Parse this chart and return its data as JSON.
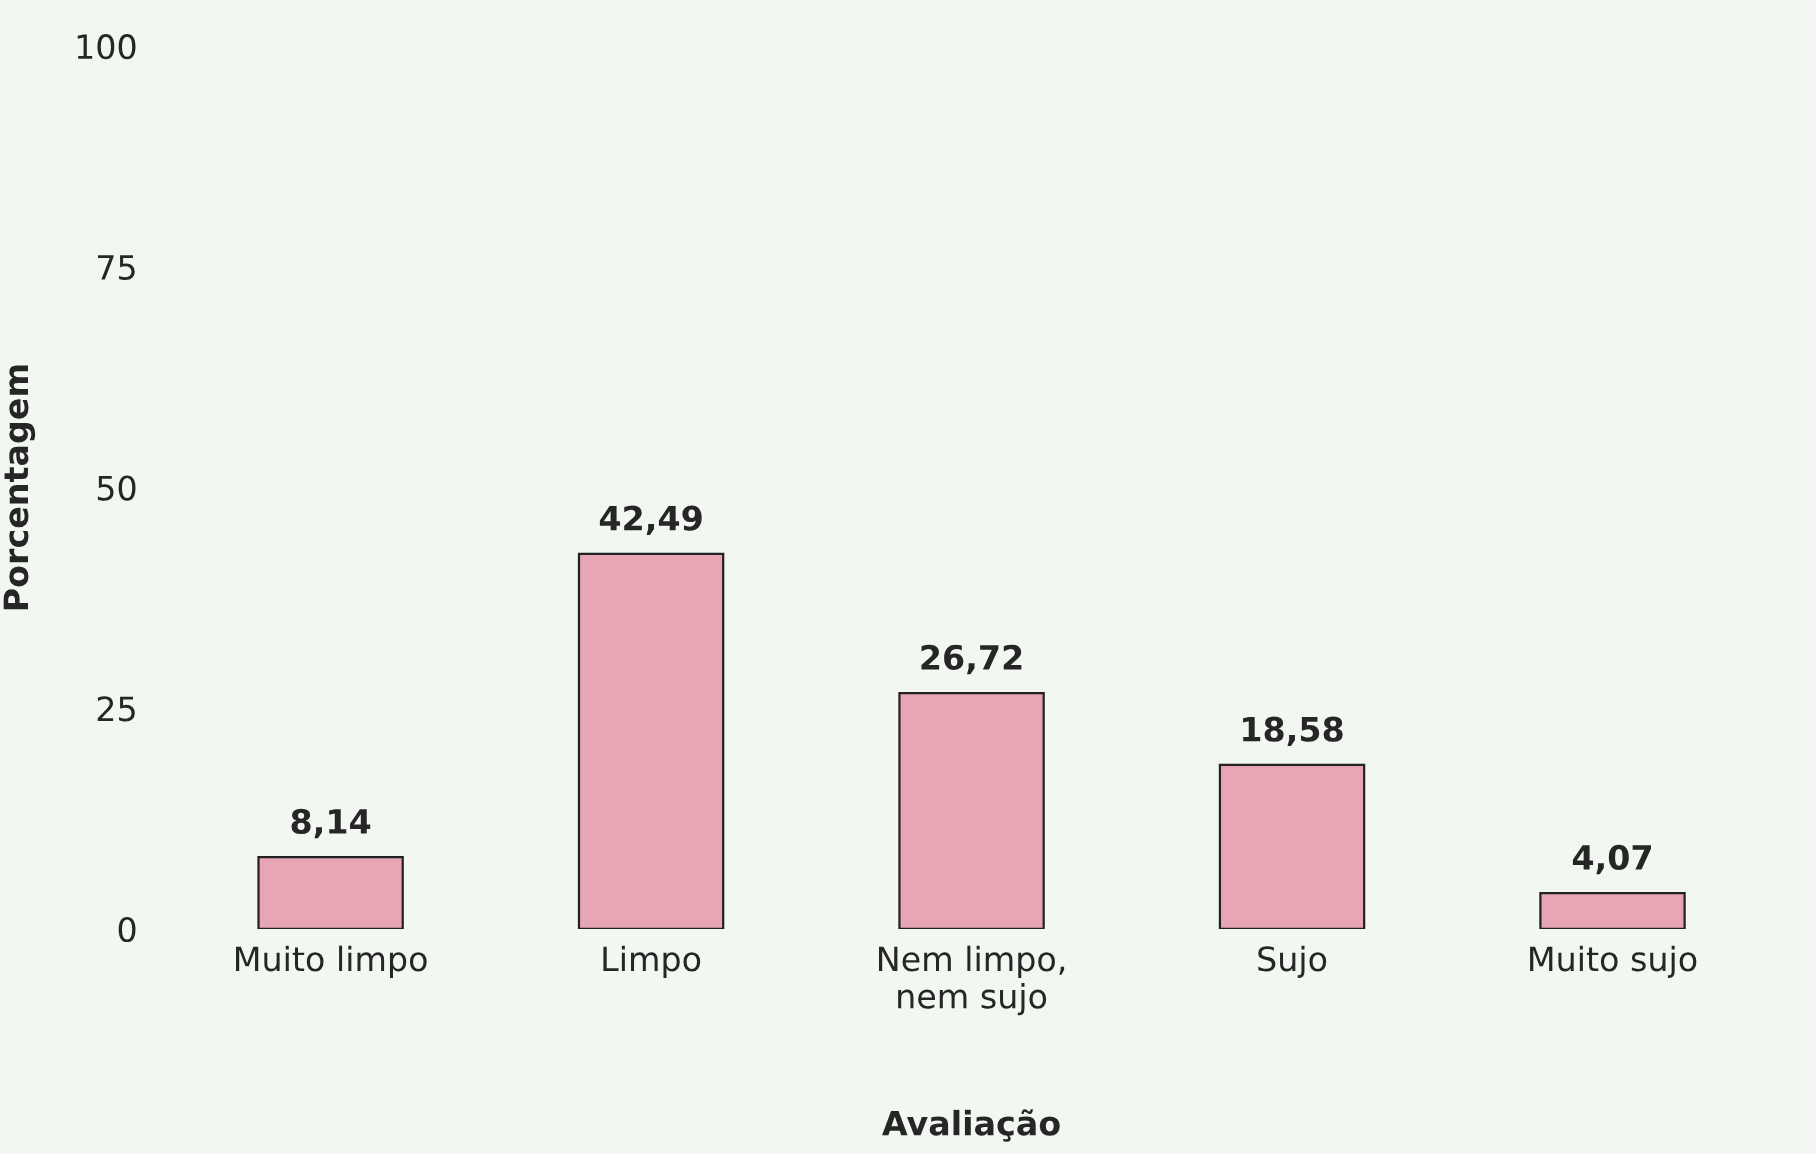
{
  "chart_data": {
    "type": "bar",
    "xlabel": "Avaliação",
    "ylabel": "Porcentagem",
    "categories": [
      "Muito limpo",
      "Limpo",
      "Nem limpo,\nnem sujo",
      "Sujo",
      "Muito sujo"
    ],
    "values": [
      8.14,
      42.49,
      26.72,
      18.58,
      4.07
    ],
    "value_labels": [
      "8,14",
      "42,49",
      "26,72",
      "18,58",
      "4,07"
    ],
    "color": "#e8a6b4",
    "ylim": [
      0,
      100
    ],
    "yticks": [
      0,
      25,
      50,
      75,
      100
    ],
    "grid": false,
    "legend": false
  }
}
